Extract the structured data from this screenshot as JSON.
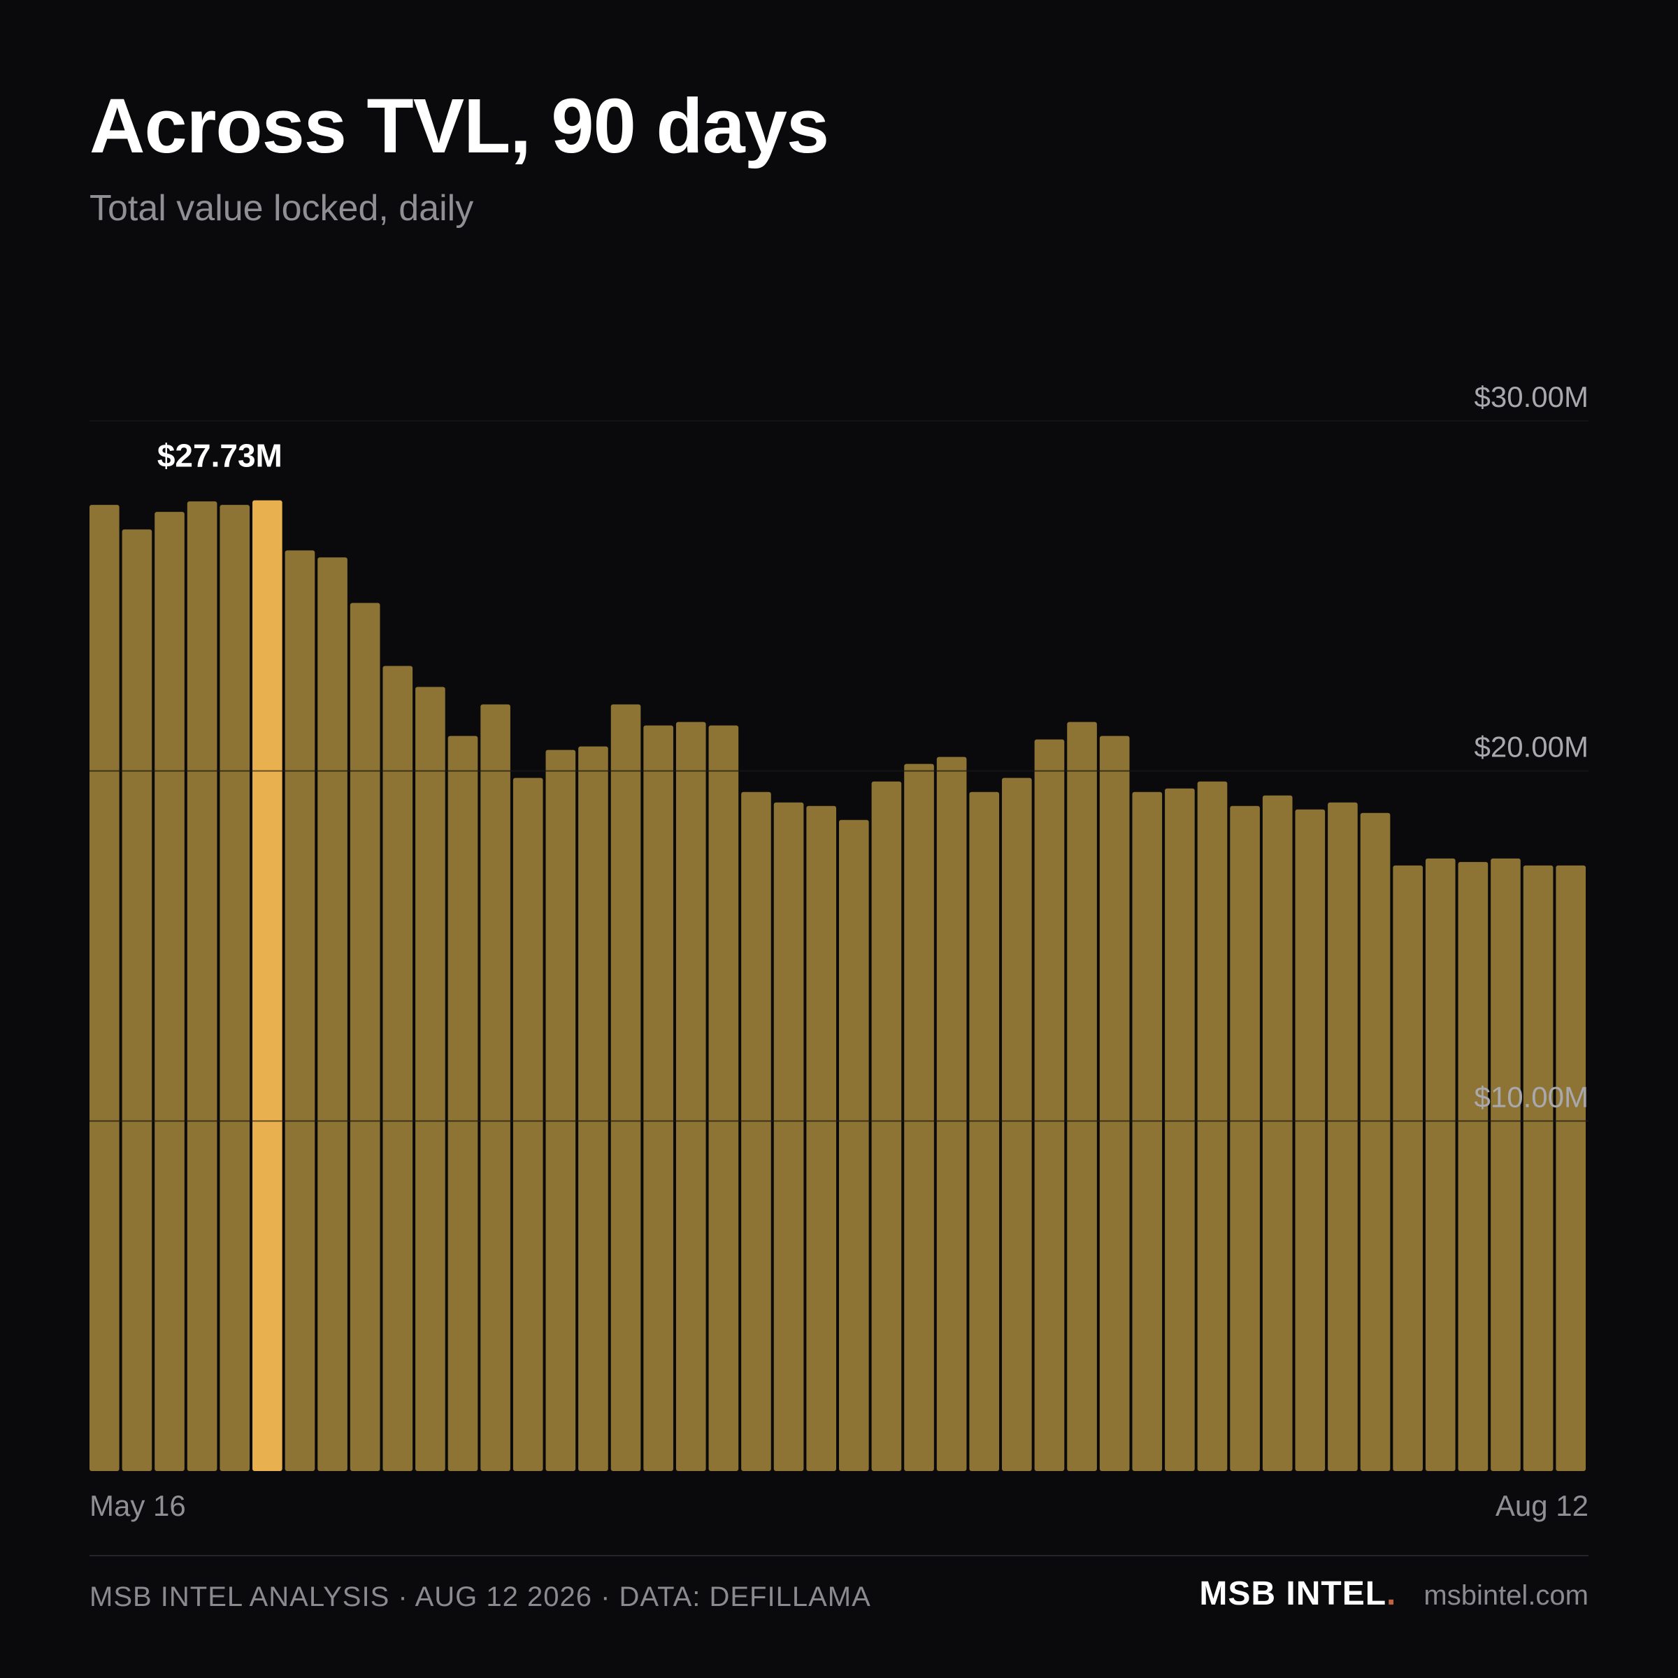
{
  "header": {
    "title": "Across TVL, 90 days",
    "subtitle": "Total value locked, daily"
  },
  "colors": {
    "background": "#0a0a0c",
    "bar": "#8d7434",
    "highlight_bar": "#e8b04e",
    "grid": "#2c2c30",
    "brand_dot": "#c0623e"
  },
  "chart_data": {
    "type": "bar",
    "title": "Across TVL, 90 days",
    "subtitle": "Total value locked, daily",
    "unit": "USD millions",
    "ylim": [
      0,
      30
    ],
    "y_ticks": [
      {
        "value": 10,
        "label": "$10.00M"
      },
      {
        "value": 20,
        "label": "$20.00M"
      },
      {
        "value": 30,
        "label": "$30.00M"
      }
    ],
    "x_labels": {
      "start": "May 16",
      "end": "Aug 12"
    },
    "grid": true,
    "highlight_index": 5,
    "highlight_label": "$27.73M",
    "values": [
      27.6,
      26.9,
      27.4,
      27.7,
      27.6,
      27.73,
      26.3,
      26.1,
      24.8,
      23.0,
      22.4,
      21.0,
      21.9,
      19.8,
      20.6,
      20.7,
      21.9,
      21.3,
      21.4,
      21.3,
      19.4,
      19.1,
      19.0,
      18.6,
      19.7,
      20.2,
      20.4,
      19.4,
      19.8,
      20.9,
      21.4,
      21.0,
      19.4,
      19.5,
      19.7,
      19.0,
      19.3,
      18.9,
      19.1,
      18.8,
      17.3,
      17.5,
      17.4,
      17.5,
      17.3,
      17.3
    ]
  },
  "footer": {
    "left": "MSB INTEL ANALYSIS · AUG 12 2026 · DATA: DEFILLAMA",
    "brand": "MSB INTEL",
    "brand_dot": ".",
    "domain": "msbintel.com"
  }
}
